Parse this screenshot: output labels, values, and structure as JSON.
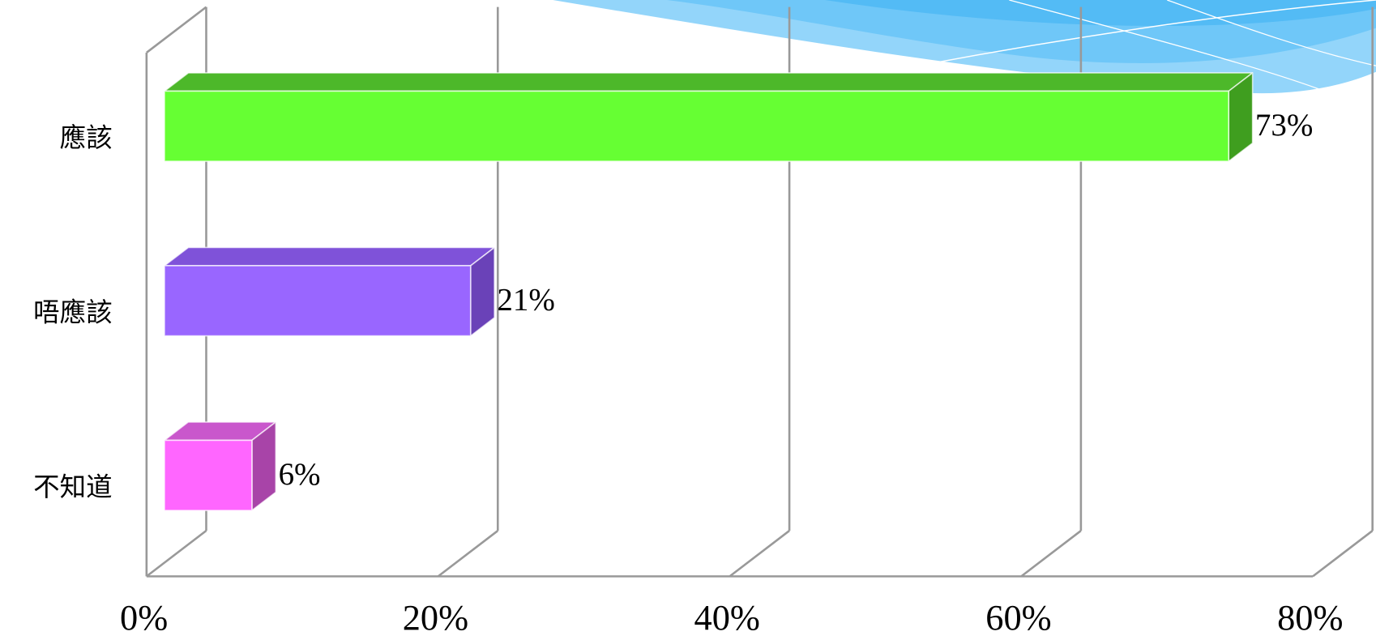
{
  "chart_data": {
    "type": "bar",
    "orientation": "horizontal",
    "style": "3d",
    "categories": [
      "應該",
      "唔應該",
      "不知道"
    ],
    "values": [
      73,
      21,
      6
    ],
    "data_labels": [
      "73%",
      "21%",
      "6%"
    ],
    "x_ticks": [
      0,
      20,
      40,
      60,
      80
    ],
    "x_tick_labels": [
      "0%",
      "20%",
      "40%",
      "60%",
      "80%"
    ],
    "xlim": [
      0,
      80
    ],
    "grid": true,
    "legend": "none",
    "grid_color": "#999999",
    "bar_colors": [
      {
        "front": "#66FF33",
        "top": "#4DB82A",
        "side": "#3F9E1F"
      },
      {
        "front": "#9966FF",
        "top": "#7F52D9",
        "side": "#6A42B8"
      },
      {
        "front": "#FF66FF",
        "top": "#C957CC",
        "side": "#A844A8"
      }
    ]
  },
  "decoration": {
    "swoosh_colors": [
      "#93D5FA",
      "#6CC5F7",
      "#4FB8F4",
      "#FFFFFF"
    ]
  }
}
